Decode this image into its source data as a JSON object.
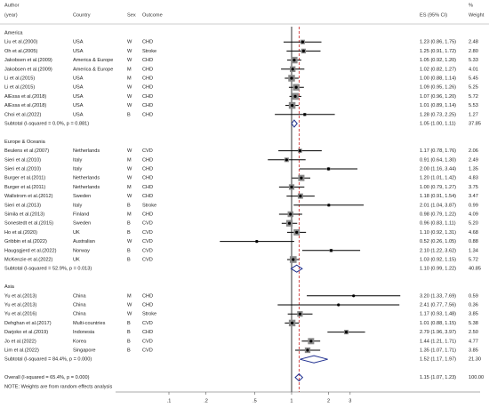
{
  "chart_data": {
    "type": "forest",
    "headers": {
      "author": "Author",
      "year": "(year)",
      "country": "Country",
      "sex": "Sex",
      "outcome": "Outcome",
      "es": "ES (95% CI)",
      "pct": "%",
      "weight": "Weight"
    },
    "xlim": [
      0.1,
      8
    ],
    "xticks": [
      {
        "value": 0.1,
        "label": ".1"
      },
      {
        "value": 0.2,
        "label": ".2"
      },
      {
        "value": 0.5,
        "label": ".5"
      },
      1,
      2,
      3
    ],
    "log_x": true,
    "null_value": 1,
    "colors": {
      "box": "#8a8a8a",
      "point": "#000000",
      "ci": "#000000",
      "diamond": "#1f2f8f",
      "null_line": "#000000",
      "overall_line": "#cc2222"
    },
    "groups": [
      {
        "name": "America",
        "studies": [
          {
            "author": "Liu et al.(2000)",
            "country": "USA",
            "sex": "W",
            "outcome": "CHD",
            "es": 1.23,
            "ci": [
              0.86,
              1.75
            ],
            "es_label": "1.23 (0.86, 1.75)",
            "weight": 2.48,
            "weight_label": "2.48"
          },
          {
            "author": "Oh et al.(2005)",
            "country": "USA",
            "sex": "W",
            "outcome": "Stroke",
            "es": 1.25,
            "ci": [
              0.91,
              1.72
            ],
            "es_label": "1.25 (0.91, 1.72)",
            "weight": 2.8,
            "weight_label": "2.80"
          },
          {
            "author": "Jakobsen et al.(2009)",
            "country": "America & Europe",
            "sex": "W",
            "outcome": "CHD",
            "es": 1.05,
            "ci": [
              0.92,
              1.2
            ],
            "es_label": "1.05 (0.92, 1.20)",
            "weight": 5.33,
            "weight_label": "5.33"
          },
          {
            "author": "Jakobsen et al.(2009)",
            "country": "America & Europe",
            "sex": "M",
            "outcome": "CHD",
            "es": 1.02,
            "ci": [
              0.82,
              1.27
            ],
            "es_label": "1.02 (0.82, 1.27)",
            "weight": 4.01,
            "weight_label": "4.01"
          },
          {
            "author": "Li et al.(2015)",
            "country": "USA",
            "sex": "M",
            "outcome": "CHD",
            "es": 1.0,
            "ci": [
              0.88,
              1.14
            ],
            "es_label": "1.00 (0.88, 1.14)",
            "weight": 5.45,
            "weight_label": "5.45"
          },
          {
            "author": "Li et al.(2015)",
            "country": "USA",
            "sex": "W",
            "outcome": "CHD",
            "es": 1.09,
            "ci": [
              0.95,
              1.26
            ],
            "es_label": "1.09 (0.95, 1.26)",
            "weight": 5.25,
            "weight_label": "5.25"
          },
          {
            "author": "AlEssa et al.(2018)",
            "country": "USA",
            "sex": "W",
            "outcome": "CHD",
            "es": 1.07,
            "ci": [
              0.96,
              1.2
            ],
            "es_label": "1.07 (0.96, 1.20)",
            "weight": 5.72,
            "weight_label": "5.72"
          },
          {
            "author": "AlEssa et al.(2018)",
            "country": "USA",
            "sex": "W",
            "outcome": "CHD",
            "es": 1.01,
            "ci": [
              0.89,
              1.14
            ],
            "es_label": "1.01 (0.89, 1.14)",
            "weight": 5.53,
            "weight_label": "5.53"
          },
          {
            "author": "Choi et al.(2022)",
            "country": "USA",
            "sex": "B",
            "outcome": "CHD",
            "es": 1.28,
            "ci": [
              0.73,
              2.25
            ],
            "es_label": "1.28 (0.73, 2.25)",
            "weight": 1.27,
            "weight_label": "1.27"
          }
        ],
        "subtotal": {
          "label": "Subtotal  (I-squared = 0.0%, p = 0.881)",
          "es": 1.05,
          "ci": [
            1.0,
            1.11
          ],
          "es_label": "1.05 (1.00, 1.11)",
          "weight": 37.85,
          "weight_label": "37.85"
        }
      },
      {
        "name": "Europe & Oceania",
        "studies": [
          {
            "author": "Beulens et al.(2007)",
            "country": "Netherlands",
            "sex": "W",
            "outcome": "CVD",
            "es": 1.17,
            "ci": [
              0.78,
              1.76
            ],
            "es_label": "1.17 (0.78, 1.76)",
            "weight": 2.06,
            "weight_label": "2.06"
          },
          {
            "author": "Sieri et al.(2010)",
            "country": "Italy",
            "sex": "M",
            "outcome": "CHD",
            "es": 0.91,
            "ci": [
              0.64,
              1.3
            ],
            "es_label": "0.91 (0.64, 1.30)",
            "weight": 2.49,
            "weight_label": "2.49"
          },
          {
            "author": "Sieri et al.(2010)",
            "country": "Italy",
            "sex": "W",
            "outcome": "CHD",
            "es": 2.0,
            "ci": [
              1.16,
              3.44
            ],
            "es_label": "2.00 (1.16, 3.44)",
            "weight": 1.35,
            "weight_label": "1.35"
          },
          {
            "author": "Burger et al.(2011)",
            "country": "Netherlands",
            "sex": "W",
            "outcome": "CHD",
            "es": 1.2,
            "ci": [
              1.01,
              1.42
            ],
            "es_label": "1.20 (1.01, 1.42)",
            "weight": 4.83,
            "weight_label": "4.83"
          },
          {
            "author": "Burger et al.(2011)",
            "country": "Netherlands",
            "sex": "M",
            "outcome": "CHD",
            "es": 1.0,
            "ci": [
              0.79,
              1.27
            ],
            "es_label": "1.00 (0.79, 1.27)",
            "weight": 3.75,
            "weight_label": "3.75"
          },
          {
            "author": "Wallstrom et al.(2012)",
            "country": "Sweden",
            "sex": "W",
            "outcome": "CHD",
            "es": 1.18,
            "ci": [
              0.91,
              1.54
            ],
            "es_label": "1.18 (0.91, 1.54)",
            "weight": 3.47,
            "weight_label": "3.47"
          },
          {
            "author": "Sieri et al.(2013)",
            "country": "Italy",
            "sex": "B",
            "outcome": "Stroke",
            "es": 2.01,
            "ci": [
              1.04,
              3.87
            ],
            "es_label": "2.01 (1.04, 3.87)",
            "weight": 0.99,
            "weight_label": "0.99"
          },
          {
            "author": "Simila et al.(2013)",
            "country": "Finland",
            "sex": "M",
            "outcome": "CHD",
            "es": 0.98,
            "ci": [
              0.79,
              1.22
            ],
            "es_label": "0.98 (0.79, 1.22)",
            "weight": 4.09,
            "weight_label": "4.09"
          },
          {
            "author": "Sonestedt et al.(2015)",
            "country": "Sweden",
            "sex": "B",
            "outcome": "CVD",
            "es": 0.96,
            "ci": [
              0.83,
              1.11
            ],
            "es_label": "0.96 (0.83, 1.11)",
            "weight": 5.2,
            "weight_label": "5.20"
          },
          {
            "author": "Ho et al.(2020)",
            "country": "UK",
            "sex": "B",
            "outcome": "CVD",
            "es": 1.1,
            "ci": [
              0.92,
              1.31
            ],
            "es_label": "1.10 (0.92, 1.31)",
            "weight": 4.68,
            "weight_label": "4.68"
          },
          {
            "author": "Gribbin et al.(2022)",
            "country": "Australian",
            "sex": "W",
            "outcome": "CVD",
            "es": 0.52,
            "ci": [
              0.26,
              1.05
            ],
            "es_label": "0.52 (0.26, 1.05)",
            "weight": 0.88,
            "weight_label": "0.88"
          },
          {
            "author": "Haugsgjerd et al.(2022)",
            "country": "Norway",
            "sex": "B",
            "outcome": "CVD",
            "es": 2.1,
            "ci": [
              1.22,
              3.62
            ],
            "es_label": "2.10 (1.22, 3.62)",
            "weight": 1.34,
            "weight_label": "1.34"
          },
          {
            "author": "McKenzie et al.(2022)",
            "country": "UK",
            "sex": "B",
            "outcome": "CVD",
            "es": 1.03,
            "ci": [
              0.92,
              1.15
            ],
            "es_label": "1.03 (0.92, 1.15)",
            "weight": 5.72,
            "weight_label": "5.72"
          }
        ],
        "subtotal": {
          "label": "Subtotal  (I-squared = 52.9%, p = 0.013)",
          "es": 1.1,
          "ci": [
            0.99,
            1.22
          ],
          "es_label": "1.10 (0.99, 1.22)",
          "weight": 40.85,
          "weight_label": "40.85"
        }
      },
      {
        "name": "Asia",
        "studies": [
          {
            "author": "Yu et al.(2013)",
            "country": "China",
            "sex": "M",
            "outcome": "CHD",
            "es": 3.2,
            "ci": [
              1.33,
              7.69
            ],
            "es_label": "3.20 (1.33, 7.69)",
            "weight": 0.59,
            "weight_label": "0.59"
          },
          {
            "author": "Yu et al.(2013)",
            "country": "China",
            "sex": "W",
            "outcome": "CHD",
            "es": 2.41,
            "ci": [
              0.77,
              7.56
            ],
            "es_label": "2.41 (0.77, 7.56)",
            "weight": 0.36,
            "weight_label": "0.36"
          },
          {
            "author": "Yu et al.(2016)",
            "country": "China",
            "sex": "W",
            "outcome": "Stroke",
            "es": 1.17,
            "ci": [
              0.93,
              1.48
            ],
            "es_label": "1.17 (0.93, 1.48)",
            "weight": 3.85,
            "weight_label": "3.85"
          },
          {
            "author": "Dehghan et al.(2017)",
            "country": "Multi-countries",
            "sex": "B",
            "outcome": "CVD",
            "es": 1.01,
            "ci": [
              0.88,
              1.15
            ],
            "es_label": "1.01 (0.88, 1.15)",
            "weight": 5.38,
            "weight_label": "5.38"
          },
          {
            "author": "Darjoko et al.(2019)",
            "country": "Indonesia",
            "sex": "B",
            "outcome": "CHD",
            "es": 2.79,
            "ci": [
              1.96,
              3.97
            ],
            "es_label": "2.79 (1.96, 3.97)",
            "weight": 2.5,
            "weight_label": "2.50"
          },
          {
            "author": "Jo et al.(2022)",
            "country": "Korea",
            "sex": "B",
            "outcome": "CVD",
            "es": 1.44,
            "ci": [
              1.21,
              1.71
            ],
            "es_label": "1.44 (1.21, 1.71)",
            "weight": 4.77,
            "weight_label": "4.77"
          },
          {
            "author": "Lim et al.(2022)",
            "country": "Singapore",
            "sex": "B",
            "outcome": "CVD",
            "es": 1.35,
            "ci": [
              1.07,
              1.71
            ],
            "es_label": "1.35 (1.07, 1.71)",
            "weight": 3.85,
            "weight_label": "3.85"
          }
        ],
        "subtotal": {
          "label": "Subtotal  (I-squared = 84.4%, p = 0.000)",
          "es": 1.52,
          "ci": [
            1.17,
            1.97
          ],
          "es_label": "1.52 (1.17, 1.97)",
          "weight": 21.3,
          "weight_label": "21.30"
        }
      }
    ],
    "overall": {
      "label": "Overall  (I-squared = 65.4%, p = 0.000)",
      "es": 1.15,
      "ci": [
        1.07,
        1.23
      ],
      "es_label": "1.15 (1.07, 1.23)",
      "weight": 100,
      "weight_label": "100.00"
    },
    "note": "NOTE: Weights are from random effects analysis"
  }
}
